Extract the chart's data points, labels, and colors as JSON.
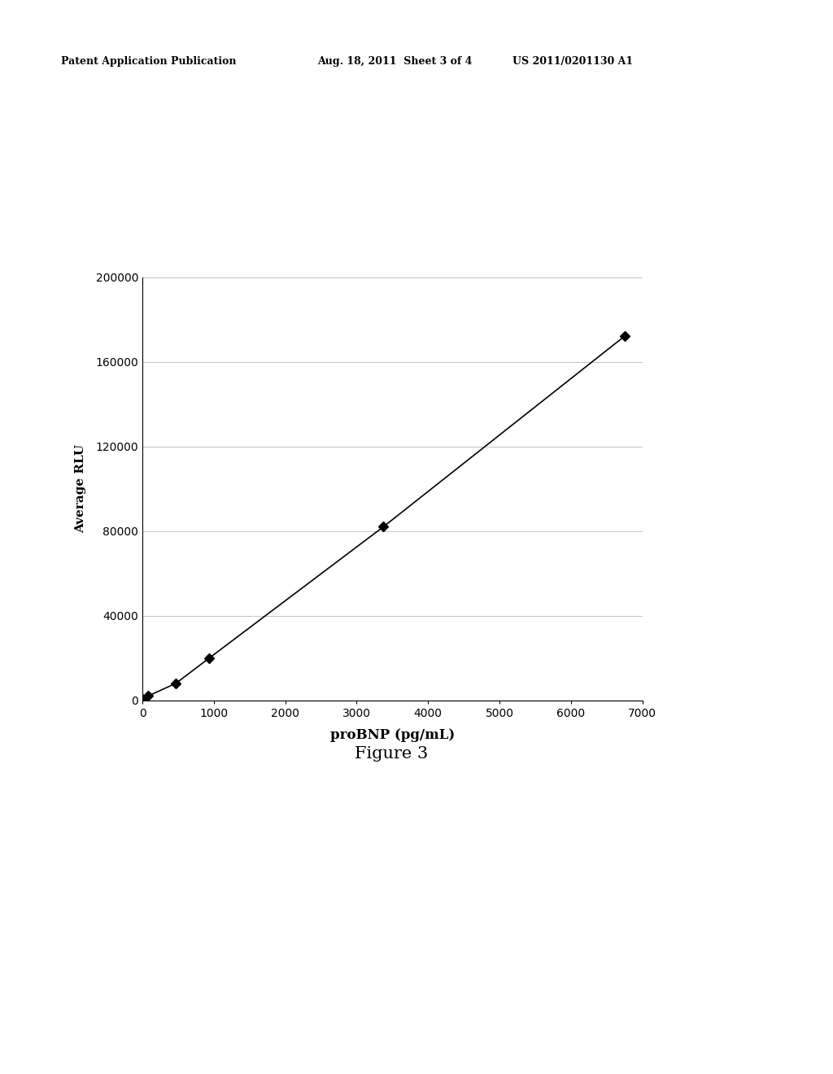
{
  "x_data": [
    0,
    78,
    469,
    938,
    3375,
    6750
  ],
  "y_data": [
    500,
    2000,
    8000,
    20000,
    82000,
    172000
  ],
  "xlabel": "proBNP (pg/mL)",
  "ylabel": "Average RLU",
  "xlim": [
    0,
    7000
  ],
  "ylim": [
    0,
    200000
  ],
  "xticks": [
    0,
    1000,
    2000,
    3000,
    4000,
    5000,
    6000,
    7000
  ],
  "yticks": [
    0,
    40000,
    80000,
    120000,
    160000,
    200000
  ],
  "figure_caption": "Figure 3",
  "header_left": "Patent Application Publication",
  "header_center": "Aug. 18, 2011  Sheet 3 of 4",
  "header_right": "US 2011/0201130 A1",
  "line_color": "#000000",
  "marker": "D",
  "marker_size": 6,
  "grid_color": "#bbbbbb",
  "grid_linestyle": "-",
  "grid_linewidth": 0.6,
  "axis_linewidth": 0.8,
  "xlabel_fontsize": 12,
  "ylabel_fontsize": 11,
  "tick_fontsize": 10,
  "caption_fontsize": 15,
  "header_fontsize": 9,
  "background_color": "#ffffff"
}
